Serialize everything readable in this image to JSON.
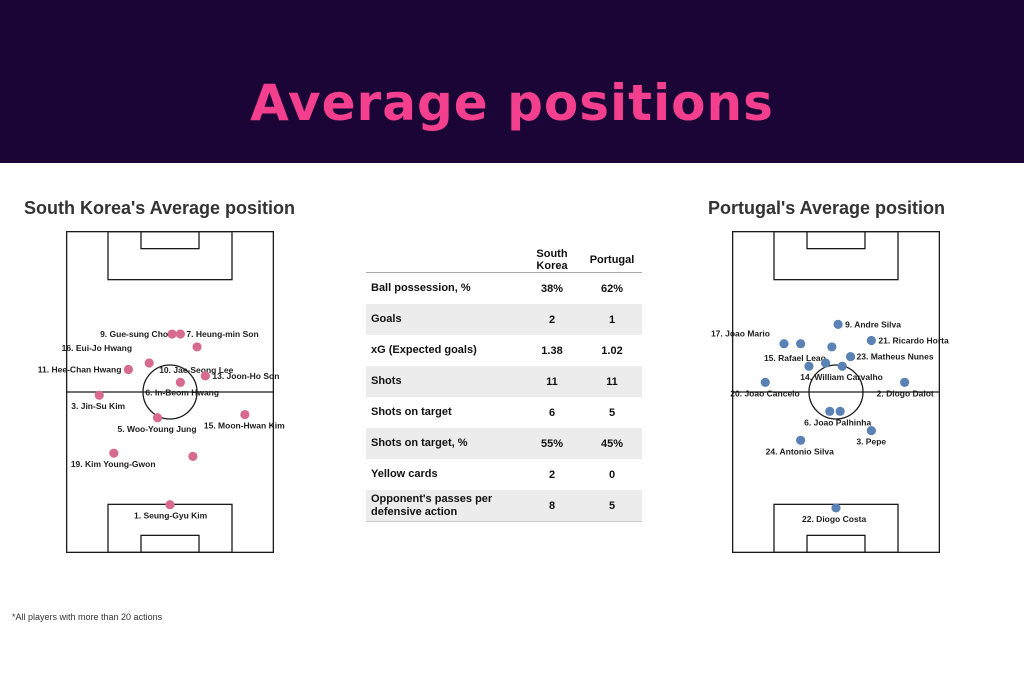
{
  "title": "Average positions",
  "footnote": "*All players with more than 20 actions",
  "colors": {
    "banner_bg": "#1a0536",
    "title": "#f43f8f",
    "korea_dot": "#d66b8f",
    "portugal_dot": "#5a82b4"
  },
  "stats_table": {
    "headers": [
      "",
      "South Korea",
      "Portugal"
    ],
    "rows": [
      {
        "label": "Ball possession, %",
        "korea": "38%",
        "portugal": "62%"
      },
      {
        "label": "Goals",
        "korea": "2",
        "portugal": "1"
      },
      {
        "label": "xG (Expected goals)",
        "korea": "1.38",
        "portugal": "1.02"
      },
      {
        "label": "Shots",
        "korea": "11",
        "portugal": "11"
      },
      {
        "label": "Shots on target",
        "korea": "6",
        "portugal": "5"
      },
      {
        "label": "Shots on target, %",
        "korea": "55%",
        "portugal": "45%"
      },
      {
        "label": "Yellow cards",
        "korea": "2",
        "portugal": "0"
      },
      {
        "label": "Opponent's passes per defensive action",
        "korea": "8",
        "portugal": "5"
      }
    ]
  },
  "chart_data": [
    {
      "type": "scatter",
      "title": "South Korea's Average position",
      "xlim": [
        0,
        100
      ],
      "ylim": [
        0,
        100
      ],
      "points": [
        {
          "label": "9. Gue-sung Cho",
          "x": 51,
          "y": 68
        },
        {
          "label": "7. Heung-min Son",
          "x": 55,
          "y": 68
        },
        {
          "label": "16. Eui-Jo Hwang",
          "x": 63,
          "y": 64
        },
        {
          "label": "10. Jae-Seong Lee",
          "x": 40,
          "y": 59
        },
        {
          "label": "11. Hee-Chan Hwang",
          "x": 30,
          "y": 57
        },
        {
          "label": "6. In-Beom Hwang",
          "x": 55,
          "y": 53
        },
        {
          "label": "13. Joon-Ho Son",
          "x": 67,
          "y": 55
        },
        {
          "label": "3. Jin-Su Kim",
          "x": 16,
          "y": 49
        },
        {
          "label": "5. Woo-Young Jung",
          "x": 44,
          "y": 42
        },
        {
          "label": "15. Moon-Hwan Kim",
          "x": 86,
          "y": 43
        },
        {
          "label": "19. Kim Young-Gwon",
          "x": 23,
          "y": 31
        },
        {
          "label": "",
          "x": 61,
          "y": 30
        },
        {
          "label": "1. Seung-Gyu Kim",
          "x": 50,
          "y": 15
        }
      ]
    },
    {
      "type": "scatter",
      "title": "Portugal's Average position",
      "xlim": [
        0,
        100
      ],
      "ylim": [
        0,
        100
      ],
      "points": [
        {
          "label": "9. Andre Silva",
          "x": 51,
          "y": 71
        },
        {
          "label": "21. Ricardo Horta",
          "x": 67,
          "y": 66
        },
        {
          "label": "17. Joao Mario",
          "x": 25,
          "y": 65
        },
        {
          "label": "",
          "x": 33,
          "y": 65
        },
        {
          "label": "",
          "x": 48,
          "y": 64
        },
        {
          "label": "23. Matheus Nunes",
          "x": 57,
          "y": 61
        },
        {
          "label": "15. Rafael Leao",
          "x": 37,
          "y": 58
        },
        {
          "label": "",
          "x": 45,
          "y": 59
        },
        {
          "label": "14. William Carvalho",
          "x": 53,
          "y": 58
        },
        {
          "label": "20. Joao Cancelo",
          "x": 16,
          "y": 53
        },
        {
          "label": "2. Diogo Dalot",
          "x": 83,
          "y": 53
        },
        {
          "label": "",
          "x": 47,
          "y": 44
        },
        {
          "label": "6. Joao Palhinha",
          "x": 52,
          "y": 44
        },
        {
          "label": "3. Pepe",
          "x": 67,
          "y": 38
        },
        {
          "label": "24. Antonio Silva",
          "x": 33,
          "y": 35
        },
        {
          "label": "22. Diogo Costa",
          "x": 50,
          "y": 14
        }
      ]
    }
  ]
}
